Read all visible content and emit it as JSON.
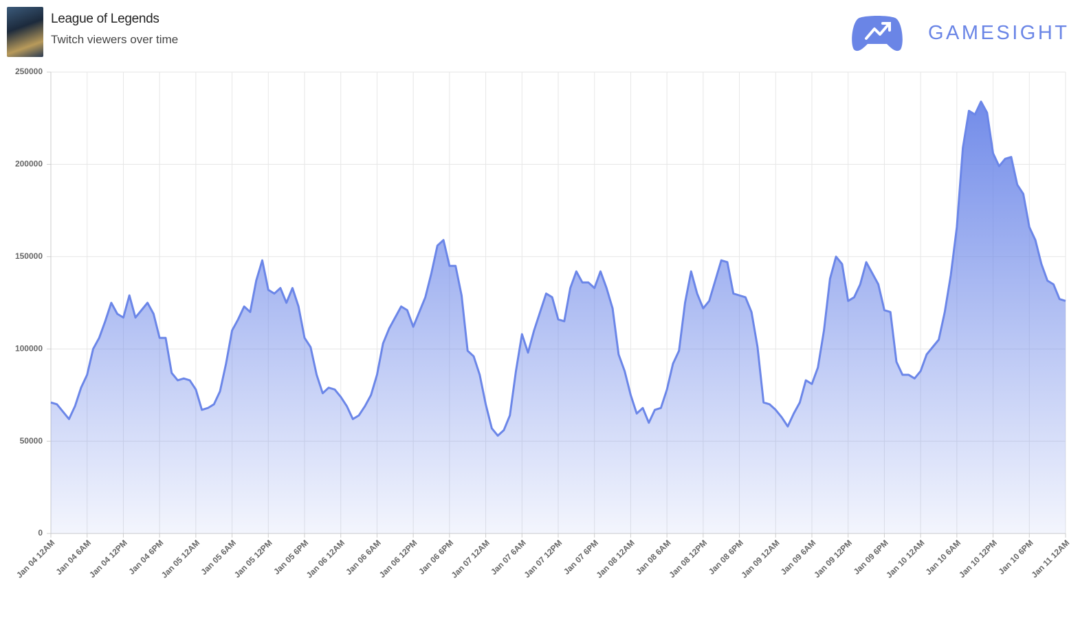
{
  "header": {
    "title": "League of Legends",
    "subtitle": "Twitch viewers over time",
    "brand": "GAMESIGHT"
  },
  "chart_data": {
    "type": "area",
    "color": "#6b86e8",
    "categories": [
      "Jan 04 12AM",
      null,
      null,
      null,
      null,
      null,
      "Jan 04 6AM",
      null,
      null,
      null,
      null,
      null,
      "Jan 04 12PM",
      null,
      null,
      null,
      null,
      null,
      "Jan 04 6PM",
      null,
      null,
      null,
      null,
      null,
      "Jan 05 12AM",
      null,
      null,
      null,
      null,
      null,
      "Jan 05 6AM",
      null,
      null,
      null,
      null,
      null,
      "Jan 05 12PM",
      null,
      null,
      null,
      null,
      null,
      "Jan 05 6PM",
      null,
      null,
      null,
      null,
      null,
      "Jan 06 12AM",
      null,
      null,
      null,
      null,
      null,
      "Jan 06 6AM",
      null,
      null,
      null,
      null,
      null,
      "Jan 06 12PM",
      null,
      null,
      null,
      null,
      null,
      "Jan 06 6PM",
      null,
      null,
      null,
      null,
      null,
      "Jan 07 12AM",
      null,
      null,
      null,
      null,
      null,
      "Jan 07 6AM",
      null,
      null,
      null,
      null,
      null,
      "Jan 07 12PM",
      null,
      null,
      null,
      null,
      null,
      "Jan 07 6PM",
      null,
      null,
      null,
      null,
      null,
      "Jan 08 12AM",
      null,
      null,
      null,
      null,
      null,
      "Jan 08 6AM",
      null,
      null,
      null,
      null,
      null,
      "Jan 08 12PM",
      null,
      null,
      null,
      null,
      null,
      "Jan 08 6PM",
      null,
      null,
      null,
      null,
      null,
      "Jan 09 12AM",
      null,
      null,
      null,
      null,
      null,
      "Jan 09 6AM",
      null,
      null,
      null,
      null,
      null,
      "Jan 09 12PM",
      null,
      null,
      null,
      null,
      null,
      "Jan 09 6PM",
      null,
      null,
      null,
      null,
      null,
      "Jan 10 12AM",
      null,
      null,
      null,
      null,
      null,
      "Jan 10 6AM",
      null,
      null,
      null,
      null,
      null,
      "Jan 10 12PM",
      null,
      null,
      null,
      null,
      null,
      "Jan 10 6PM",
      null,
      null,
      null,
      null,
      null,
      "Jan 11 12AM"
    ],
    "values": [
      71000,
      70000,
      66000,
      62000,
      69000,
      79000,
      86000,
      100000,
      106000,
      115000,
      125000,
      119000,
      117000,
      129000,
      117000,
      121000,
      125000,
      119000,
      106000,
      106000,
      87000,
      83000,
      84000,
      83000,
      78000,
      67000,
      68000,
      70000,
      77000,
      92000,
      110000,
      116000,
      123000,
      120000,
      137000,
      148000,
      132000,
      130000,
      133000,
      125000,
      133000,
      123000,
      106000,
      101000,
      86000,
      76000,
      79000,
      78000,
      74000,
      69000,
      62000,
      64000,
      69000,
      75000,
      86000,
      103000,
      111000,
      117000,
      123000,
      121000,
      112000,
      120000,
      128000,
      141000,
      156000,
      159000,
      145000,
      145000,
      129000,
      99000,
      96000,
      86000,
      70000,
      57000,
      53000,
      56000,
      64000,
      88000,
      108000,
      98000,
      110000,
      120000,
      130000,
      128000,
      116000,
      115000,
      133000,
      142000,
      136000,
      136000,
      133000,
      142000,
      133000,
      122000,
      97000,
      88000,
      75000,
      65000,
      68000,
      60000,
      67000,
      68000,
      78000,
      92000,
      99000,
      125000,
      142000,
      130000,
      122000,
      126000,
      137000,
      148000,
      147000,
      130000,
      129000,
      128000,
      120000,
      101000,
      71000,
      70000,
      67000,
      63000,
      58000,
      65000,
      71000,
      83000,
      81000,
      90000,
      110000,
      138000,
      150000,
      146000,
      126000,
      128000,
      135000,
      147000,
      141000,
      135000,
      121000,
      120000,
      93000,
      86000,
      86000,
      84000,
      88000,
      97000,
      101000,
      105000,
      120000,
      140000,
      166000,
      209000,
      229000,
      227000,
      234000,
      228000,
      206000,
      199000,
      203000,
      204000,
      189000,
      184000,
      166000,
      159000,
      146000,
      137000,
      135000,
      127000,
      126000
    ],
    "ylim": [
      0,
      250000
    ],
    "yticks": [
      0,
      50000,
      100000,
      150000,
      200000,
      250000
    ],
    "grid": true
  }
}
